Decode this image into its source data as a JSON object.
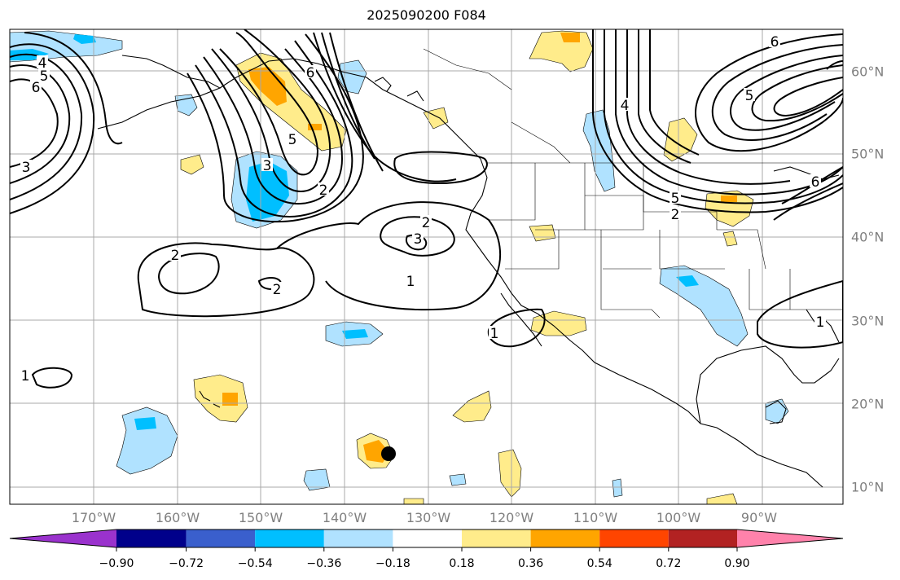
{
  "title": "2025090200 F084",
  "longitude_labels": [
    "170°W",
    "160°W",
    "150°W",
    "140°W",
    "130°W",
    "120°W",
    "110°W",
    "100°W",
    "90°W"
  ],
  "latitude_labels": [
    "60°N",
    "50°N",
    "40°N",
    "30°N",
    "20°N",
    "10°N"
  ],
  "colorbar": {
    "tick_labels": [
      "−0.90",
      "−0.72",
      "−0.54",
      "−0.36",
      "−0.18",
      "0.18",
      "0.36",
      "0.54",
      "0.72",
      "0.90"
    ],
    "colors": [
      "#9a32cd",
      "#00008b",
      "#3a5fcd",
      "#00bfff",
      "#b0e2ff",
      "#ffffff",
      "#ffec8b",
      "#ffa500",
      "#ff4500",
      "#b22222",
      "#ff82ab"
    ]
  },
  "contour_labels": [
    "4",
    "5",
    "6",
    "3",
    "6",
    "5",
    "3",
    "2",
    "2",
    "2",
    "3",
    "1",
    "1",
    "1",
    "2",
    "4",
    "5",
    "6",
    "5",
    "2",
    "6",
    "1"
  ],
  "marker": "storm-position-dot"
}
